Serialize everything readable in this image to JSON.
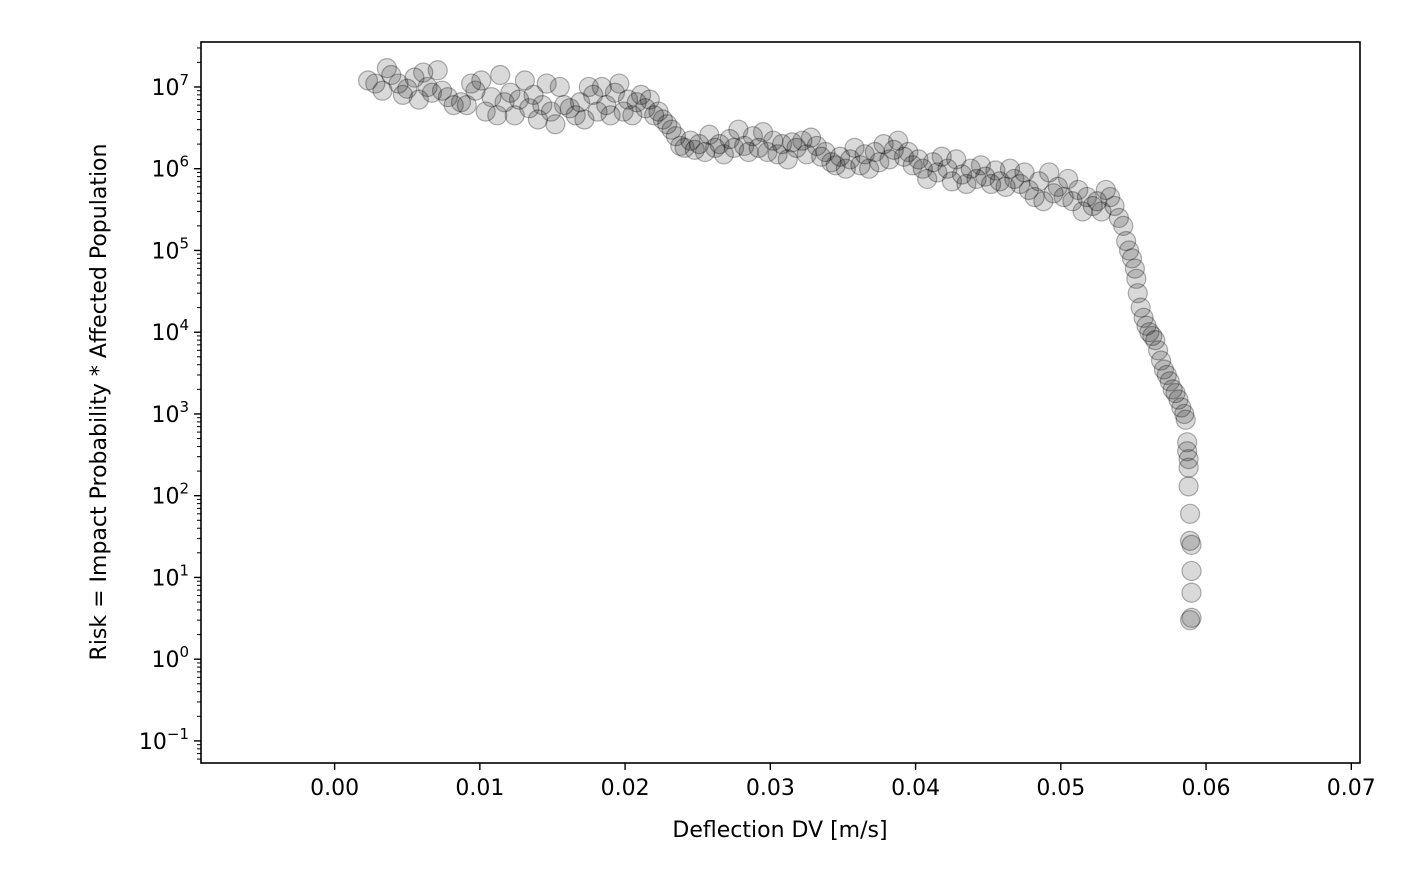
{
  "chart_data": {
    "type": "scatter",
    "title": "",
    "xlabel": "Deflection DV [m/s]",
    "ylabel": "Risk = Impact Probability * Affected Population",
    "x_scale": "linear",
    "y_scale": "log",
    "xlim": [
      -0.0092,
      0.0706
    ],
    "ylim_log10": [
      -1.27,
      7.55
    ],
    "x_ticks": [
      {
        "value": 0.0,
        "label": "0.00"
      },
      {
        "value": 0.01,
        "label": "0.01"
      },
      {
        "value": 0.02,
        "label": "0.02"
      },
      {
        "value": 0.03,
        "label": "0.03"
      },
      {
        "value": 0.04,
        "label": "0.04"
      },
      {
        "value": 0.05,
        "label": "0.05"
      },
      {
        "value": 0.06,
        "label": "0.06"
      },
      {
        "value": 0.07,
        "label": "0.07"
      }
    ],
    "y_ticks": [
      {
        "exp": 7,
        "base": "10",
        "sup": "7"
      },
      {
        "exp": 6,
        "base": "10",
        "sup": "6"
      },
      {
        "exp": 5,
        "base": "10",
        "sup": "5"
      },
      {
        "exp": 4,
        "base": "10",
        "sup": "4"
      },
      {
        "exp": 3,
        "base": "10",
        "sup": "3"
      },
      {
        "exp": 2,
        "base": "10",
        "sup": "2"
      },
      {
        "exp": 1,
        "base": "10",
        "sup": "1"
      },
      {
        "exp": 0,
        "base": "10",
        "sup": "0"
      },
      {
        "exp": -1,
        "base": "10",
        "sup": "−1"
      }
    ],
    "grid": false,
    "legend": "none",
    "marker": {
      "shape": "circle",
      "color": "#000000",
      "fill_alpha": 0.15,
      "edge_alpha": 0.3
    },
    "series": [
      {
        "points": [
          [
            0.0023,
            12000000.0
          ],
          [
            0.0028,
            11000000.0
          ],
          [
            0.0033,
            9000000.0
          ],
          [
            0.0036,
            17000000.0
          ],
          [
            0.0039,
            14000000.0
          ],
          [
            0.0044,
            11000000.0
          ],
          [
            0.0047,
            8000000.0
          ],
          [
            0.005,
            9500000.0
          ],
          [
            0.0055,
            13000000.0
          ],
          [
            0.0058,
            7000000.0
          ],
          [
            0.0061,
            15000000.0
          ],
          [
            0.0064,
            10000000.0
          ],
          [
            0.0067,
            8500000.0
          ],
          [
            0.0071,
            16000000.0
          ],
          [
            0.0074,
            9000000.0
          ],
          [
            0.0078,
            7500000.0
          ],
          [
            0.0082,
            6000000.0
          ],
          [
            0.0087,
            6500000.0
          ],
          [
            0.0091,
            6000000.0
          ],
          [
            0.0094,
            11000000.0
          ],
          [
            0.0097,
            9000000.0
          ],
          [
            0.0101,
            12000000.0
          ],
          [
            0.0104,
            5000000.0
          ],
          [
            0.0108,
            7500000.0
          ],
          [
            0.0112,
            4500000.0
          ],
          [
            0.0114,
            14000000.0
          ],
          [
            0.0117,
            6500000.0
          ],
          [
            0.0121,
            8500000.0
          ],
          [
            0.0124,
            4500000.0
          ],
          [
            0.0127,
            7000000.0
          ],
          [
            0.0131,
            12000000.0
          ],
          [
            0.0134,
            5500000.0
          ],
          [
            0.0137,
            8000000.0
          ],
          [
            0.014,
            4000000.0
          ],
          [
            0.0143,
            6000000.0
          ],
          [
            0.0146,
            11000000.0
          ],
          [
            0.0149,
            5000000.0
          ],
          [
            0.0152,
            3500000.0
          ],
          [
            0.0155,
            10000000.0
          ],
          [
            0.0158,
            6000000.0
          ],
          [
            0.0162,
            5500000.0
          ],
          [
            0.0166,
            4500000.0
          ],
          [
            0.0169,
            6500000.0
          ],
          [
            0.0172,
            4000000.0
          ],
          [
            0.0175,
            10000000.0
          ],
          [
            0.0178,
            8000000.0
          ],
          [
            0.0181,
            5000000.0
          ],
          [
            0.0184,
            10000000.0
          ],
          [
            0.0187,
            6000000.0
          ],
          [
            0.019,
            4500000.0
          ],
          [
            0.0193,
            8500000.0
          ],
          [
            0.0196,
            11000000.0
          ],
          [
            0.0199,
            5000000.0
          ],
          [
            0.0202,
            7000000.0
          ],
          [
            0.0205,
            4500000.0
          ],
          [
            0.0208,
            6500000.0
          ],
          [
            0.0211,
            8000000.0
          ],
          [
            0.0214,
            5500000.0
          ],
          [
            0.0217,
            7000000.0
          ],
          [
            0.022,
            4500000.0
          ],
          [
            0.0223,
            5000000.0
          ],
          [
            0.0226,
            4000000.0
          ],
          [
            0.0229,
            3500000.0
          ],
          [
            0.0232,
            3000000.0
          ],
          [
            0.0235,
            2500000.0
          ],
          [
            0.0238,
            1900000.0
          ],
          [
            0.0241,
            1800000.0
          ],
          [
            0.0245,
            2200000.0
          ],
          [
            0.0248,
            1700000.0
          ],
          [
            0.0251,
            2000000.0
          ],
          [
            0.0255,
            1600000.0
          ],
          [
            0.0258,
            2600000.0
          ],
          [
            0.0262,
            1800000.0
          ],
          [
            0.0265,
            2000000.0
          ],
          [
            0.0268,
            1500000.0
          ],
          [
            0.0272,
            2300000.0
          ],
          [
            0.0275,
            1800000.0
          ],
          [
            0.0278,
            3000000.0
          ],
          [
            0.0282,
            1900000.0
          ],
          [
            0.0285,
            1600000.0
          ],
          [
            0.0288,
            2500000.0
          ],
          [
            0.0292,
            1800000.0
          ],
          [
            0.0295,
            2800000.0
          ],
          [
            0.0298,
            1600000.0
          ],
          [
            0.0302,
            2200000.0
          ],
          [
            0.0305,
            1500000.0
          ],
          [
            0.0308,
            2000000.0
          ],
          [
            0.0312,
            1300000.0
          ],
          [
            0.0315,
            2100000.0
          ],
          [
            0.0318,
            1800000.0
          ],
          [
            0.0322,
            2200000.0
          ],
          [
            0.0325,
            1500000.0
          ],
          [
            0.0328,
            2400000.0
          ],
          [
            0.0332,
            1900000.0
          ],
          [
            0.0335,
            1400000.0
          ],
          [
            0.0338,
            1600000.0
          ],
          [
            0.0342,
            1200000.0
          ],
          [
            0.0345,
            1100000.0
          ],
          [
            0.0348,
            1400000.0
          ],
          [
            0.0352,
            1000000.0
          ],
          [
            0.0355,
            1300000.0
          ],
          [
            0.0358,
            1800000.0
          ],
          [
            0.0362,
            1100000.0
          ],
          [
            0.0365,
            1500000.0
          ],
          [
            0.0368,
            1000000.0
          ],
          [
            0.0372,
            1600000.0
          ],
          [
            0.0375,
            1200000.0
          ],
          [
            0.0378,
            2000000.0
          ],
          [
            0.0382,
            1300000.0
          ],
          [
            0.0385,
            1700000.0
          ],
          [
            0.0388,
            2200000.0
          ],
          [
            0.0392,
            1400000.0
          ],
          [
            0.0395,
            1600000.0
          ],
          [
            0.0398,
            1100000.0
          ],
          [
            0.0402,
            1300000.0
          ],
          [
            0.0405,
            1000000.0
          ],
          [
            0.0408,
            750000.0
          ],
          [
            0.0412,
            1200000.0
          ],
          [
            0.0415,
            900000.0
          ],
          [
            0.0418,
            1400000.0
          ],
          [
            0.0422,
            1000000.0
          ],
          [
            0.0425,
            700000.0
          ],
          [
            0.0428,
            1300000.0
          ],
          [
            0.0432,
            850000.0
          ],
          [
            0.0435,
            650000.0
          ],
          [
            0.0438,
            1000000.0
          ],
          [
            0.0442,
            750000.0
          ],
          [
            0.0445,
            1100000.0
          ],
          [
            0.0448,
            800000.0
          ],
          [
            0.0452,
            650000.0
          ],
          [
            0.0455,
            950000.0
          ],
          [
            0.0458,
            700000.0
          ],
          [
            0.0462,
            600000.0
          ],
          [
            0.0465,
            1000000.0
          ],
          [
            0.0468,
            750000.0
          ],
          [
            0.0472,
            650000.0
          ],
          [
            0.0475,
            900000.0
          ],
          [
            0.0478,
            550000.0
          ],
          [
            0.0482,
            450000.0
          ],
          [
            0.0485,
            700000.0
          ],
          [
            0.0488,
            400000.0
          ],
          [
            0.0492,
            900000.0
          ],
          [
            0.0495,
            500000.0
          ],
          [
            0.0498,
            600000.0
          ],
          [
            0.0502,
            450000.0
          ],
          [
            0.0505,
            750000.0
          ],
          [
            0.0508,
            400000.0
          ],
          [
            0.0512,
            550000.0
          ],
          [
            0.0515,
            300000.0
          ],
          [
            0.0518,
            450000.0
          ],
          [
            0.0522,
            350000.0
          ],
          [
            0.0525,
            400000.0
          ],
          [
            0.0528,
            300000.0
          ],
          [
            0.0531,
            550000.0
          ],
          [
            0.0534,
            450000.0
          ],
          [
            0.0537,
            350000.0
          ],
          [
            0.054,
            250000.0
          ],
          [
            0.0543,
            200000.0
          ],
          [
            0.0545,
            130000.0
          ],
          [
            0.0547,
            100000.0
          ],
          [
            0.0549,
            80000.0
          ],
          [
            0.0551,
            60000.0
          ],
          [
            0.0552,
            45000.0
          ],
          [
            0.0553,
            30000.0
          ],
          [
            0.0555,
            20000.0
          ],
          [
            0.0557,
            15000.0
          ],
          [
            0.0559,
            12000.0
          ],
          [
            0.0561,
            10000.0
          ],
          [
            0.0563,
            9000.0
          ],
          [
            0.0565,
            8000.0
          ],
          [
            0.0567,
            6000.0
          ],
          [
            0.0569,
            4500.0
          ],
          [
            0.0571,
            3500.0
          ],
          [
            0.0573,
            3000.0
          ],
          [
            0.0575,
            2500.0
          ],
          [
            0.0577,
            2000.0
          ],
          [
            0.0579,
            1800.0
          ],
          [
            0.0581,
            1500.0
          ],
          [
            0.0583,
            1200.0
          ],
          [
            0.0585,
            1000.0
          ],
          [
            0.0586,
            850.0
          ],
          [
            0.0587,
            450.0
          ],
          [
            0.0587,
            350.0
          ],
          [
            0.0588,
            280.0
          ],
          [
            0.0588,
            220.0
          ],
          [
            0.0588,
            130.0
          ],
          [
            0.0589,
            60.0
          ],
          [
            0.0589,
            28.0
          ],
          [
            0.059,
            25.0
          ],
          [
            0.059,
            12.0
          ],
          [
            0.059,
            6.5
          ],
          [
            0.059,
            3.2
          ],
          [
            0.0589,
            3.0
          ]
        ]
      }
    ]
  }
}
